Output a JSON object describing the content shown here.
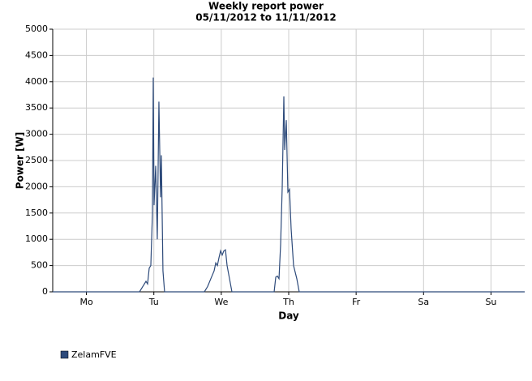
{
  "chart_data": {
    "type": "line",
    "title": "Weekly report power",
    "subtitle": "05/11/2012 to 11/11/2012",
    "xlabel": "Day",
    "ylabel": "Power [W]",
    "x": [
      0,
      1.287,
      1.335,
      1.359,
      1.383,
      1.407,
      1.431,
      1.455,
      1.479,
      1.491,
      1.503,
      1.527,
      1.551,
      1.575,
      1.599,
      1.611,
      1.635,
      1.659,
      2.249,
      2.297,
      2.345,
      2.394,
      2.418,
      2.442,
      2.466,
      2.49,
      2.514,
      2.538,
      2.562,
      2.586,
      2.622,
      2.658,
      3.284,
      3.308,
      3.332,
      3.356,
      3.38,
      3.404,
      3.428,
      3.44,
      3.464,
      3.488,
      3.512,
      3.536,
      3.572,
      3.62,
      3.656,
      7
    ],
    "series": [
      {
        "name": "ZelamFVE",
        "color": "#2d4a7a",
        "values": [
          0,
          0,
          100,
          150,
          200,
          150,
          450,
          500,
          1500,
          4080,
          1650,
          2400,
          1000,
          3620,
          1800,
          2600,
          400,
          0,
          0,
          100,
          250,
          400,
          550,
          500,
          650,
          780,
          700,
          780,
          800,
          500,
          250,
          0,
          0,
          280,
          300,
          250,
          900,
          2000,
          3720,
          2700,
          3270,
          1900,
          1950,
          1200,
          500,
          250,
          0,
          0
        ]
      }
    ],
    "xlim": [
      0,
      7
    ],
    "xticks": [
      {
        "value": 0.5,
        "label": "Mo"
      },
      {
        "value": 1.5,
        "label": "Tu"
      },
      {
        "value": 2.5,
        "label": "We"
      },
      {
        "value": 3.5,
        "label": "Th"
      },
      {
        "value": 4.5,
        "label": "Fr"
      },
      {
        "value": 5.5,
        "label": "Sa"
      },
      {
        "value": 6.5,
        "label": "Su"
      }
    ],
    "ylim": [
      0,
      5000
    ],
    "yticks": [
      0,
      500,
      1000,
      1500,
      2000,
      2500,
      3000,
      3500,
      4000,
      4500,
      5000
    ],
    "grid": true,
    "legend": "bottom-left"
  }
}
